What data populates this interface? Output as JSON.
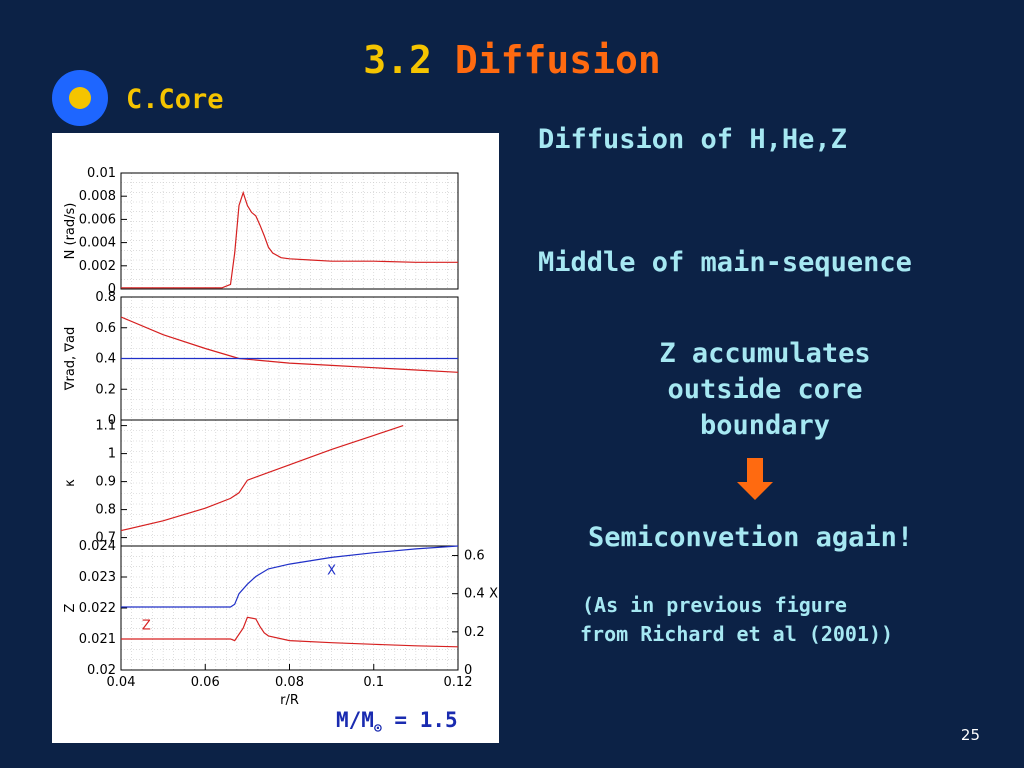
{
  "slide": {
    "title_number": "3.2",
    "title_word": "Diffusion",
    "subheading": "C.Core",
    "page_number": "25"
  },
  "right_panel": {
    "line1": "Diffusion of H,He,Z",
    "line2": "Middle of main-sequence",
    "line3a": "Z accumulates",
    "line3b": "outside core",
    "line3c": "boundary",
    "line4": "Semiconvetion again!",
    "note1": "(As in previous figure",
    "note2": "from Richard et al (2001))",
    "arrow_icon": "down-arrow-icon",
    "arrow_color": "#ff6a10"
  },
  "figure": {
    "mass_label_prefix": "M/M",
    "mass_label_sub": "⊙",
    "mass_label_value": " = 1.5"
  },
  "chart_data": [
    {
      "type": "line",
      "ylabel": "N (rad/s)",
      "xlim": [
        0.04,
        0.12
      ],
      "ylim": [
        0,
        0.01
      ],
      "yticks": [
        "0",
        "0.002",
        "0.004",
        "0.006",
        "0.008",
        "0.01"
      ],
      "series": [
        {
          "color": "#d62020",
          "x": [
            0.04,
            0.064,
            0.066,
            0.067,
            0.068,
            0.069,
            0.07,
            0.071,
            0.072,
            0.073,
            0.074,
            0.075,
            0.076,
            0.078,
            0.08,
            0.085,
            0.09,
            0.1,
            0.11,
            0.12
          ],
          "y": [
            0.0001,
            0.0001,
            0.0004,
            0.0031,
            0.0072,
            0.0083,
            0.0072,
            0.0066,
            0.0063,
            0.0055,
            0.0046,
            0.0036,
            0.0031,
            0.0027,
            0.0026,
            0.0025,
            0.0024,
            0.0024,
            0.0023,
            0.0023
          ]
        }
      ]
    },
    {
      "type": "line",
      "ylabel": "∇rad, ∇ad",
      "xlim": [
        0.04,
        0.12
      ],
      "ylim": [
        0,
        0.8
      ],
      "yticks": [
        "0",
        "0.2",
        "0.4",
        "0.6",
        "0.8"
      ],
      "series": [
        {
          "color": "#d62020",
          "x": [
            0.04,
            0.05,
            0.06,
            0.068,
            0.08,
            0.09,
            0.1,
            0.11,
            0.12
          ],
          "y": [
            0.67,
            0.555,
            0.465,
            0.4,
            0.37,
            0.355,
            0.34,
            0.325,
            0.31
          ]
        },
        {
          "color": "#2030c8",
          "x": [
            0.04,
            0.12
          ],
          "y": [
            0.4,
            0.4
          ]
        }
      ]
    },
    {
      "type": "line",
      "ylabel": "κ",
      "xlim": [
        0.04,
        0.12
      ],
      "ylim": [
        0.67,
        1.12
      ],
      "yticks": [
        "0.7",
        "0.8",
        "0.9",
        "1",
        "1.1"
      ],
      "series": [
        {
          "color": "#d62020",
          "x": [
            0.04,
            0.05,
            0.06,
            0.066,
            0.068,
            0.07,
            0.08,
            0.09,
            0.1,
            0.107
          ],
          "y": [
            0.725,
            0.76,
            0.805,
            0.84,
            0.86,
            0.905,
            0.96,
            1.015,
            1.065,
            1.1
          ]
        }
      ]
    },
    {
      "type": "line",
      "xlabel": "r/R",
      "ylabel": "Z",
      "y2label": "X",
      "xlim": [
        0.04,
        0.12
      ],
      "ylim": [
        0.02,
        0.024
      ],
      "y2lim": [
        0,
        0.65
      ],
      "xticks": [
        "0.04",
        "0.06",
        "0.08",
        "0.1",
        "0.12"
      ],
      "yticks": [
        "0.02",
        "0.021",
        "0.022",
        "0.023",
        "0.024"
      ],
      "y2ticks": [
        "0",
        "0.2",
        "0.4",
        "0.6"
      ],
      "series": [
        {
          "name": "X",
          "axis": "right",
          "color": "#2030c8",
          "x": [
            0.04,
            0.066,
            0.067,
            0.068,
            0.07,
            0.072,
            0.075,
            0.08,
            0.09,
            0.1,
            0.11,
            0.12
          ],
          "y": [
            0.33,
            0.33,
            0.345,
            0.4,
            0.45,
            0.49,
            0.53,
            0.555,
            0.59,
            0.615,
            0.635,
            0.65
          ]
        },
        {
          "name": "Z",
          "axis": "left",
          "color": "#d62020",
          "x": [
            0.04,
            0.066,
            0.067,
            0.069,
            0.07,
            0.072,
            0.073,
            0.074,
            0.075,
            0.08,
            0.09,
            0.1,
            0.11,
            0.12
          ],
          "y": [
            0.021,
            0.021,
            0.02095,
            0.02135,
            0.0217,
            0.02165,
            0.0214,
            0.0212,
            0.0211,
            0.02095,
            0.02088,
            0.02083,
            0.02078,
            0.02075
          ]
        }
      ]
    }
  ]
}
